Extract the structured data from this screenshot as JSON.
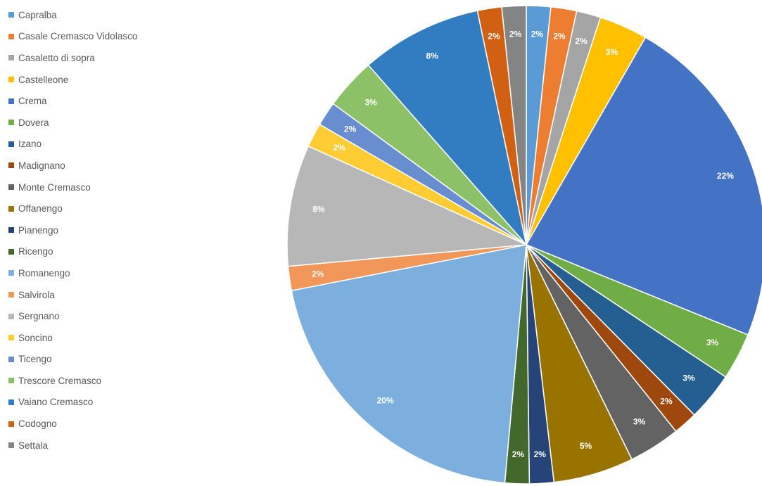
{
  "chart_data": {
    "type": "pie",
    "title": "",
    "legend_position": "left",
    "data_labels": "percent",
    "slices": [
      {
        "label": "Capralba",
        "value": 1.6,
        "display": "2%",
        "color": "#5B9BD5"
      },
      {
        "label": "Casale Cremasco Vidolasco",
        "value": 1.7,
        "display": "2%",
        "color": "#ED7D31"
      },
      {
        "label": "Casaletto di sopra",
        "value": 1.6,
        "display": "2%",
        "color": "#A5A5A5"
      },
      {
        "label": "Castelleone",
        "value": 3.2,
        "display": "3%",
        "color": "#FFC000"
      },
      {
        "label": "Crema",
        "value": 22.3,
        "display": "22%",
        "color": "#4472C4"
      },
      {
        "label": "Dovera",
        "value": 3.1,
        "display": "3%",
        "color": "#70AD47"
      },
      {
        "label": "Izano",
        "value": 3.2,
        "display": "3%",
        "color": "#255E91"
      },
      {
        "label": "Madignano",
        "value": 1.6,
        "display": "2%",
        "color": "#9E480E"
      },
      {
        "label": "Monte Cremasco",
        "value": 3.4,
        "display": "3%",
        "color": "#636363"
      },
      {
        "label": "Offanengo",
        "value": 5.3,
        "display": "5%",
        "color": "#997300"
      },
      {
        "label": "Pianengo",
        "value": 1.6,
        "display": "2%",
        "color": "#264478"
      },
      {
        "label": "Ricengo",
        "value": 1.6,
        "display": "2%",
        "color": "#43682B"
      },
      {
        "label": "Romanengo",
        "value": 20.0,
        "display": "20%",
        "color": "#7CAFDD"
      },
      {
        "label": "Salvirola",
        "value": 1.6,
        "display": "2%",
        "color": "#F1975A"
      },
      {
        "label": "Sergnano",
        "value": 8.0,
        "display": "8%",
        "color": "#B7B7B7"
      },
      {
        "label": "Soncino",
        "value": 1.6,
        "display": "2%",
        "color": "#FFCD33"
      },
      {
        "label": "Ticengo",
        "value": 1.6,
        "display": "2%",
        "color": "#698ED0"
      },
      {
        "label": "Trescore Cremasco",
        "value": 3.4,
        "display": "3%",
        "color": "#8CC168"
      },
      {
        "label": "Vaiano Cremasco",
        "value": 8.0,
        "display": "8%",
        "color": "#327DC2"
      },
      {
        "label": "Codogno",
        "value": 1.6,
        "display": "2%",
        "color": "#D26012"
      },
      {
        "label": "Settala",
        "value": 1.6,
        "display": "2%",
        "color": "#848484"
      }
    ]
  }
}
